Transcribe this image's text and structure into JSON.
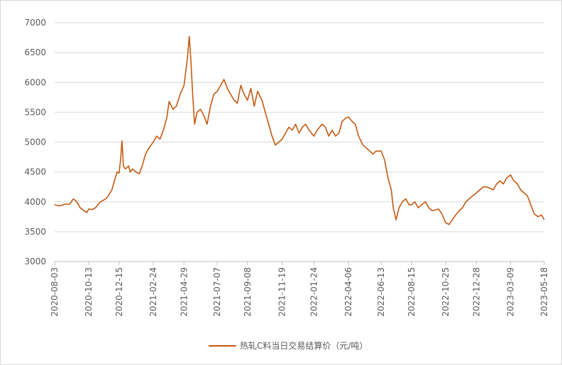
{
  "chart_data": {
    "type": "line",
    "title": "",
    "xlabel": "",
    "ylabel": "",
    "ylim": [
      3000,
      7000
    ],
    "yticks": [
      3000,
      3500,
      4000,
      4500,
      5000,
      5500,
      6000,
      6500,
      7000
    ],
    "xlim": [
      "2020-08-03",
      "2023-05-18"
    ],
    "xticks": [
      "2020-08-03",
      "2020-10-13",
      "2020-12-15",
      "2021-02-24",
      "2021-04-29",
      "2021-07-07",
      "2021-09-08",
      "2021-11-19",
      "2022-01-24",
      "2022-04-06",
      "2022-06-13",
      "2022-08-15",
      "2022-10-25",
      "2022-12-28",
      "2023-03-09",
      "2023-05-18"
    ],
    "grid": "horizontal",
    "legend_position": "bottom",
    "series": [
      {
        "name": "热轧C料当日交易结算价（元/吨）",
        "color": "#c55a11",
        "points": [
          [
            "2020-08-03",
            3950
          ],
          [
            "2020-08-14",
            3930
          ],
          [
            "2020-08-24",
            3960
          ],
          [
            "2020-09-03",
            3960
          ],
          [
            "2020-09-11",
            4050
          ],
          [
            "2020-09-18",
            4000
          ],
          [
            "2020-09-25",
            3900
          ],
          [
            "2020-10-09",
            3820
          ],
          [
            "2020-10-13",
            3880
          ],
          [
            "2020-10-20",
            3870
          ],
          [
            "2020-10-27",
            3900
          ],
          [
            "2020-11-05",
            3990
          ],
          [
            "2020-11-13",
            4030
          ],
          [
            "2020-11-20",
            4070
          ],
          [
            "2020-11-30",
            4200
          ],
          [
            "2020-12-07",
            4400
          ],
          [
            "2020-12-11",
            4500
          ],
          [
            "2020-12-15",
            4480
          ],
          [
            "2020-12-18",
            4700
          ],
          [
            "2020-12-21",
            5020
          ],
          [
            "2020-12-24",
            4600
          ],
          [
            "2020-12-28",
            4550
          ],
          [
            "2021-01-04",
            4600
          ],
          [
            "2021-01-07",
            4500
          ],
          [
            "2021-01-12",
            4550
          ],
          [
            "2021-01-19",
            4500
          ],
          [
            "2021-01-26",
            4470
          ],
          [
            "2021-02-01",
            4600
          ],
          [
            "2021-02-08",
            4800
          ],
          [
            "2021-02-15",
            4900
          ],
          [
            "2021-02-24",
            5000
          ],
          [
            "2021-03-03",
            5100
          ],
          [
            "2021-03-10",
            5050
          ],
          [
            "2021-03-17",
            5200
          ],
          [
            "2021-03-24",
            5400
          ],
          [
            "2021-03-29",
            5680
          ],
          [
            "2021-04-06",
            5550
          ],
          [
            "2021-04-13",
            5600
          ],
          [
            "2021-04-21",
            5800
          ],
          [
            "2021-04-29",
            5950
          ],
          [
            "2021-05-06",
            6400
          ],
          [
            "2021-05-10",
            6770
          ],
          [
            "2021-05-13",
            6400
          ],
          [
            "2021-05-17",
            5800
          ],
          [
            "2021-05-21",
            5300
          ],
          [
            "2021-05-26",
            5500
          ],
          [
            "2021-06-02",
            5550
          ],
          [
            "2021-06-09",
            5450
          ],
          [
            "2021-06-16",
            5300
          ],
          [
            "2021-06-23",
            5600
          ],
          [
            "2021-06-30",
            5800
          ],
          [
            "2021-07-07",
            5850
          ],
          [
            "2021-07-14",
            5950
          ],
          [
            "2021-07-21",
            6050
          ],
          [
            "2021-07-28",
            5900
          ],
          [
            "2021-08-04",
            5800
          ],
          [
            "2021-08-11",
            5700
          ],
          [
            "2021-08-18",
            5650
          ],
          [
            "2021-08-25",
            5950
          ],
          [
            "2021-09-01",
            5800
          ],
          [
            "2021-09-08",
            5700
          ],
          [
            "2021-09-15",
            5900
          ],
          [
            "2021-09-22",
            5600
          ],
          [
            "2021-09-29",
            5850
          ],
          [
            "2021-10-08",
            5700
          ],
          [
            "2021-10-15",
            5500
          ],
          [
            "2021-10-22",
            5300
          ],
          [
            "2021-10-29",
            5100
          ],
          [
            "2021-11-05",
            4950
          ],
          [
            "2021-11-12",
            5000
          ],
          [
            "2021-11-19",
            5050
          ],
          [
            "2021-11-26",
            5150
          ],
          [
            "2021-12-03",
            5250
          ],
          [
            "2021-12-10",
            5200
          ],
          [
            "2021-12-17",
            5300
          ],
          [
            "2021-12-24",
            5150
          ],
          [
            "2021-12-31",
            5250
          ],
          [
            "2022-01-07",
            5300
          ],
          [
            "2022-01-14",
            5200
          ],
          [
            "2022-01-24",
            5100
          ],
          [
            "2022-01-31",
            5200
          ],
          [
            "2022-02-10",
            5300
          ],
          [
            "2022-02-17",
            5250
          ],
          [
            "2022-02-24",
            5100
          ],
          [
            "2022-03-03",
            5200
          ],
          [
            "2022-03-10",
            5100
          ],
          [
            "2022-03-17",
            5150
          ],
          [
            "2022-03-24",
            5350
          ],
          [
            "2022-03-31",
            5400
          ],
          [
            "2022-04-06",
            5420
          ],
          [
            "2022-04-13",
            5350
          ],
          [
            "2022-04-20",
            5300
          ],
          [
            "2022-04-27",
            5100
          ],
          [
            "2022-05-06",
            4950
          ],
          [
            "2022-05-13",
            4900
          ],
          [
            "2022-05-20",
            4850
          ],
          [
            "2022-05-27",
            4800
          ],
          [
            "2022-06-02",
            4850
          ],
          [
            "2022-06-13",
            4850
          ],
          [
            "2022-06-20",
            4700
          ],
          [
            "2022-06-27",
            4400
          ],
          [
            "2022-07-04",
            4200
          ],
          [
            "2022-07-08",
            3900
          ],
          [
            "2022-07-14",
            3700
          ],
          [
            "2022-07-20",
            3900
          ],
          [
            "2022-07-27",
            4000
          ],
          [
            "2022-08-03",
            4050
          ],
          [
            "2022-08-10",
            3950
          ],
          [
            "2022-08-15",
            3950
          ],
          [
            "2022-08-22",
            4000
          ],
          [
            "2022-08-29",
            3900
          ],
          [
            "2022-09-05",
            3950
          ],
          [
            "2022-09-13",
            4000
          ],
          [
            "2022-09-20",
            3900
          ],
          [
            "2022-09-27",
            3850
          ],
          [
            "2022-10-10",
            3880
          ],
          [
            "2022-10-17",
            3800
          ],
          [
            "2022-10-25",
            3650
          ],
          [
            "2022-11-01",
            3620
          ],
          [
            "2022-11-08",
            3700
          ],
          [
            "2022-11-15",
            3780
          ],
          [
            "2022-11-22",
            3850
          ],
          [
            "2022-11-29",
            3900
          ],
          [
            "2022-12-06",
            4000
          ],
          [
            "2022-12-13",
            4050
          ],
          [
            "2022-12-20",
            4100
          ],
          [
            "2022-12-28",
            4150
          ],
          [
            "2023-01-04",
            4200
          ],
          [
            "2023-01-11",
            4250
          ],
          [
            "2023-01-18",
            4250
          ],
          [
            "2023-02-01",
            4200
          ],
          [
            "2023-02-08",
            4300
          ],
          [
            "2023-02-15",
            4350
          ],
          [
            "2023-02-22",
            4300
          ],
          [
            "2023-03-01",
            4400
          ],
          [
            "2023-03-09",
            4450
          ],
          [
            "2023-03-16",
            4350
          ],
          [
            "2023-03-23",
            4300
          ],
          [
            "2023-03-30",
            4200
          ],
          [
            "2023-04-06",
            4150
          ],
          [
            "2023-04-13",
            4100
          ],
          [
            "2023-04-20",
            3950
          ],
          [
            "2023-04-27",
            3800
          ],
          [
            "2023-05-05",
            3750
          ],
          [
            "2023-05-12",
            3780
          ],
          [
            "2023-05-18",
            3700
          ]
        ]
      }
    ]
  }
}
